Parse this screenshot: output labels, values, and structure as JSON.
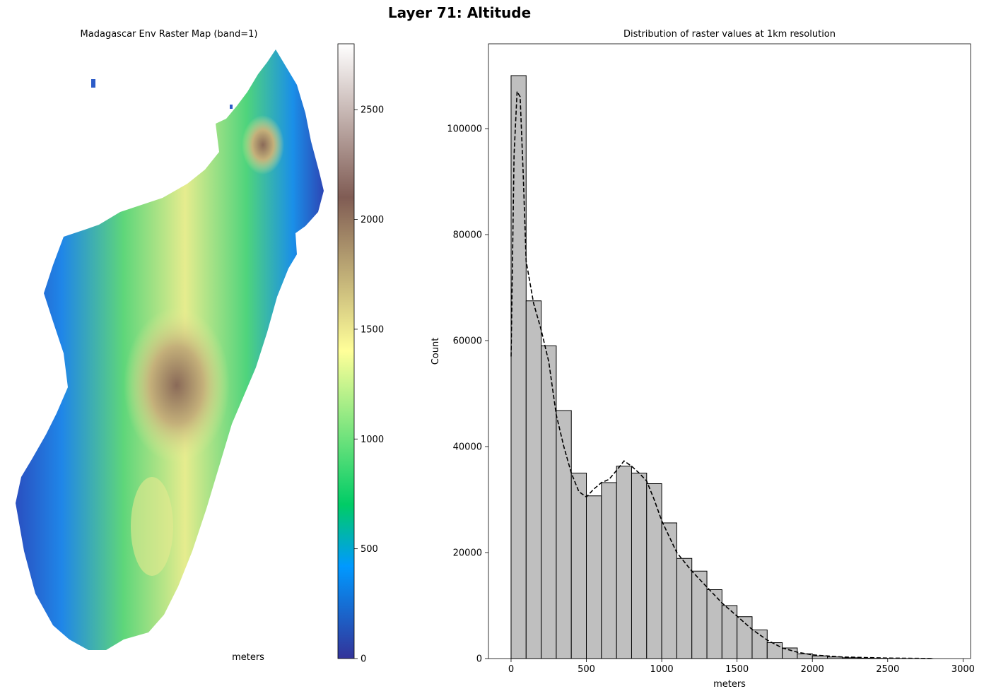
{
  "suptitle": "Layer 71: Altitude",
  "map": {
    "title": "Madagascar Env Raster Map (band=1)",
    "colorbar_label": "meters",
    "colorbar": {
      "cmap": "terrain",
      "range": [
        0,
        2800
      ],
      "ticks": [
        0,
        500,
        1000,
        1500,
        2000,
        2500
      ]
    }
  },
  "chart_data": {
    "type": "bar",
    "title": "Distribution of raster values at 1km resolution",
    "xlabel": "meters",
    "ylabel": "Count",
    "xlim": [
      -150,
      3050
    ],
    "ylim": [
      0,
      116000
    ],
    "xticks": [
      0,
      500,
      1000,
      1500,
      2000,
      2500,
      3000
    ],
    "yticks": [
      0,
      20000,
      40000,
      60000,
      80000,
      100000
    ],
    "bin_width": 100,
    "bin_edges_start": 0,
    "values": [
      110000,
      67500,
      59000,
      46800,
      35000,
      30700,
      33200,
      36300,
      35000,
      33000,
      25600,
      18900,
      16500,
      13000,
      10000,
      7900,
      5400,
      3000,
      2000,
      900,
      500,
      300,
      150,
      80,
      40,
      20,
      10,
      5
    ],
    "kde": {
      "style": "dashed",
      "x": [
        0,
        20,
        40,
        60,
        80,
        100,
        150,
        200,
        250,
        300,
        350,
        400,
        450,
        500,
        550,
        600,
        650,
        700,
        750,
        800,
        850,
        900,
        950,
        1000,
        1100,
        1200,
        1300,
        1400,
        1500,
        1600,
        1700,
        1800,
        1900,
        2000,
        2200,
        2500,
        2800
      ],
      "y": [
        57000,
        95000,
        107000,
        106000,
        92000,
        75000,
        67000,
        62000,
        56000,
        46000,
        40000,
        35000,
        31500,
        30500,
        32000,
        33200,
        33800,
        35500,
        37300,
        36300,
        35000,
        33500,
        30000,
        26000,
        20000,
        16500,
        13500,
        10500,
        8000,
        5500,
        3500,
        2000,
        1200,
        700,
        300,
        100,
        20
      ]
    },
    "bar_color": "#bfbfbf"
  }
}
